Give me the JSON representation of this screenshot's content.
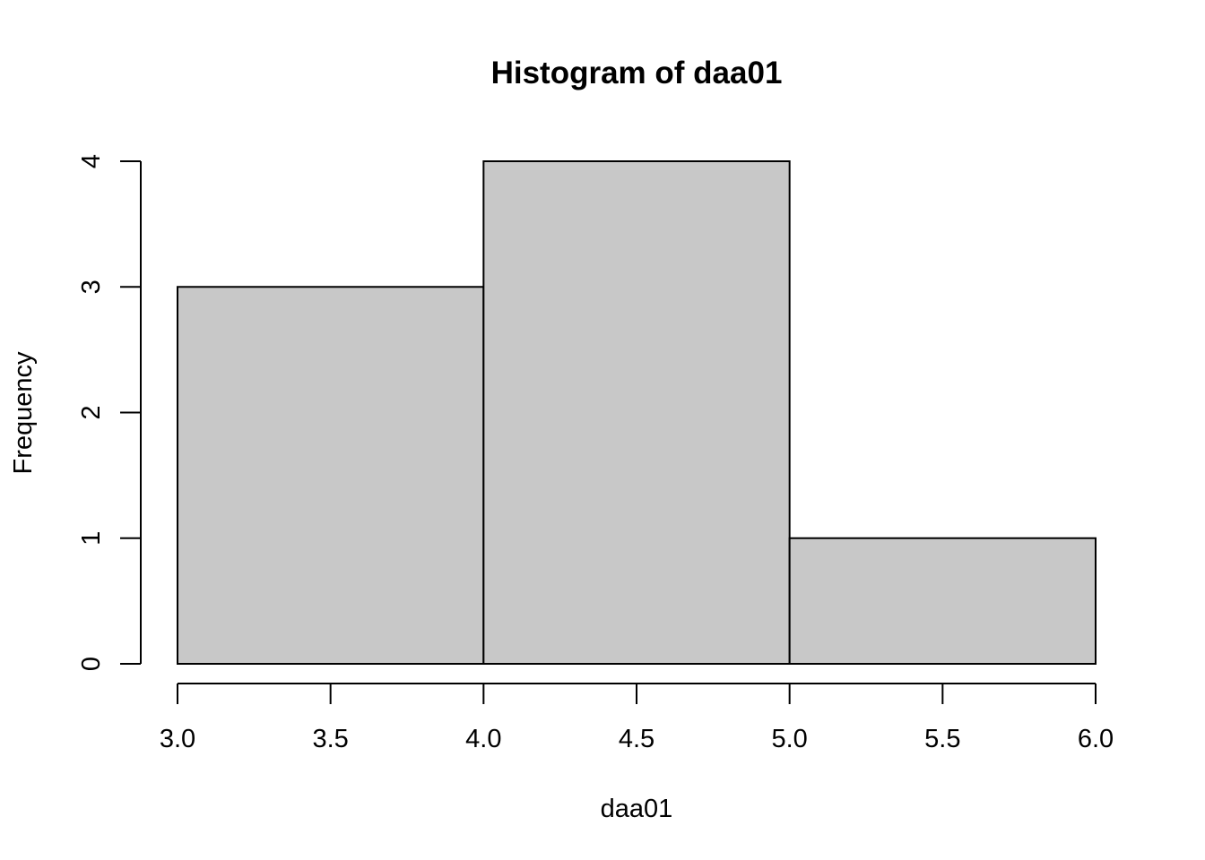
{
  "chart_data": {
    "type": "bar",
    "title": "Histogram of daa01",
    "xlabel": "daa01",
    "ylabel": "Frequency",
    "bins": [
      {
        "start": 3.0,
        "end": 4.0,
        "count": 3
      },
      {
        "start": 4.0,
        "end": 5.0,
        "count": 4
      },
      {
        "start": 5.0,
        "end": 6.0,
        "count": 1
      }
    ],
    "categories": [
      "3.0-4.0",
      "4.0-5.0",
      "5.0-6.0"
    ],
    "values": [
      3,
      4,
      1
    ],
    "xlim": [
      3.0,
      6.0
    ],
    "ylim": [
      0,
      4
    ],
    "x_ticks": [
      3.0,
      3.5,
      4.0,
      4.5,
      5.0,
      5.5,
      6.0
    ],
    "x_tick_labels": [
      "3.0",
      "3.5",
      "4.0",
      "4.5",
      "5.0",
      "5.5",
      "6.0"
    ],
    "y_ticks": [
      0,
      1,
      2,
      3,
      4
    ],
    "y_tick_labels": [
      "0",
      "1",
      "2",
      "3",
      "4"
    ],
    "grid": false,
    "bar_color": "#c8c8c8",
    "edge_color": "#000000"
  }
}
